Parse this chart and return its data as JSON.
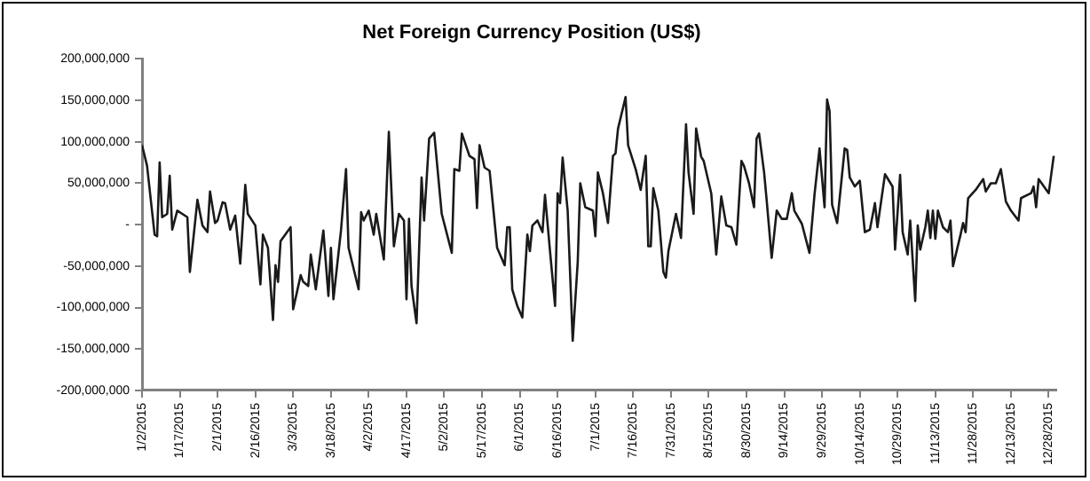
{
  "chart_data": {
    "type": "line",
    "title": "Net Foreign Currency Position (US$)",
    "x": [
      "2015-01-02",
      "2015-01-04",
      "2015-01-07",
      "2015-01-08",
      "2015-01-09",
      "2015-01-10",
      "2015-01-12",
      "2015-01-13",
      "2015-01-14",
      "2015-01-16",
      "2015-01-18",
      "2015-01-20",
      "2015-01-21",
      "2015-01-24",
      "2015-01-26",
      "2015-01-28",
      "2015-01-29",
      "2015-01-31",
      "2015-02-01",
      "2015-02-03",
      "2015-02-04",
      "2015-02-06",
      "2015-02-08",
      "2015-02-10",
      "2015-02-12",
      "2015-02-13",
      "2015-02-16",
      "2015-02-18",
      "2015-02-19",
      "2015-02-21",
      "2015-02-23",
      "2015-02-24",
      "2015-02-25",
      "2015-02-26",
      "2015-03-02",
      "2015-03-03",
      "2015-03-06",
      "2015-03-07",
      "2015-03-09",
      "2015-03-10",
      "2015-03-12",
      "2015-03-15",
      "2015-03-17",
      "2015-03-18",
      "2015-03-19",
      "2015-03-22",
      "2015-03-24",
      "2015-03-25",
      "2015-03-29",
      "2015-03-30",
      "2015-03-31",
      "2015-04-02",
      "2015-04-04",
      "2015-04-05",
      "2015-04-08",
      "2015-04-10",
      "2015-04-12",
      "2015-04-14",
      "2015-04-16",
      "2015-04-17",
      "2015-04-18",
      "2015-04-19",
      "2015-04-21",
      "2015-04-23",
      "2015-04-24",
      "2015-04-26",
      "2015-04-28",
      "2015-05-01",
      "2015-05-05",
      "2015-05-06",
      "2015-05-08",
      "2015-05-09",
      "2015-05-12",
      "2015-05-14",
      "2015-05-15",
      "2015-05-16",
      "2015-05-18",
      "2015-05-20",
      "2015-05-23",
      "2015-05-26",
      "2015-05-27",
      "2015-05-28",
      "2015-05-29",
      "2015-05-31",
      "2015-06-02",
      "2015-06-04",
      "2015-06-05",
      "2015-06-06",
      "2015-06-08",
      "2015-06-10",
      "2015-06-11",
      "2015-06-13",
      "2015-06-15",
      "2015-06-16",
      "2015-06-17",
      "2015-06-18",
      "2015-06-20",
      "2015-06-22",
      "2015-06-24",
      "2015-06-25",
      "2015-06-27",
      "2015-06-30",
      "2015-07-01",
      "2015-07-02",
      "2015-07-04",
      "2015-07-06",
      "2015-07-08",
      "2015-07-09",
      "2015-07-10",
      "2015-07-13",
      "2015-07-14",
      "2015-07-17",
      "2015-07-19",
      "2015-07-21",
      "2015-07-22",
      "2015-07-23",
      "2015-07-24",
      "2015-07-26",
      "2015-07-28",
      "2015-07-29",
      "2015-07-30",
      "2015-08-02",
      "2015-08-04",
      "2015-08-06",
      "2015-08-07",
      "2015-08-09",
      "2015-08-10",
      "2015-08-12",
      "2015-08-13",
      "2015-08-16",
      "2015-08-18",
      "2015-08-20",
      "2015-08-22",
      "2015-08-24",
      "2015-08-26",
      "2015-08-28",
      "2015-08-29",
      "2015-08-31",
      "2015-09-02",
      "2015-09-03",
      "2015-09-04",
      "2015-09-06",
      "2015-09-07",
      "2015-09-09",
      "2015-09-11",
      "2015-09-13",
      "2015-09-15",
      "2015-09-17",
      "2015-09-18",
      "2015-09-21",
      "2015-09-24",
      "2015-09-26",
      "2015-09-28",
      "2015-09-30",
      "2015-10-01",
      "2015-10-02",
      "2015-10-03",
      "2015-10-05",
      "2015-10-08",
      "2015-10-09",
      "2015-10-10",
      "2015-10-12",
      "2015-10-14",
      "2015-10-16",
      "2015-10-18",
      "2015-10-20",
      "2015-10-21",
      "2015-10-24",
      "2015-10-27",
      "2015-10-28",
      "2015-10-30",
      "2015-10-31",
      "2015-11-02",
      "2015-11-03",
      "2015-11-05",
      "2015-11-06",
      "2015-11-07",
      "2015-11-09",
      "2015-11-10",
      "2015-11-11",
      "2015-11-12",
      "2015-11-13",
      "2015-11-14",
      "2015-11-16",
      "2015-11-18",
      "2015-11-19",
      "2015-11-20",
      "2015-11-23",
      "2015-11-24",
      "2015-11-25",
      "2015-11-26",
      "2015-11-29",
      "2015-12-02",
      "2015-12-03",
      "2015-12-05",
      "2015-12-07",
      "2015-12-09",
      "2015-12-11",
      "2015-12-13",
      "2015-12-16",
      "2015-12-17",
      "2015-12-21",
      "2015-12-22",
      "2015-12-23",
      "2015-12-24",
      "2015-12-28",
      "2015-12-30"
    ],
    "series": [
      {
        "color": "#1a1a1a",
        "values": [
          96000000,
          71000000,
          -12000000,
          -14000000,
          75000000,
          9000000,
          13000000,
          59000000,
          -6000000,
          17000000,
          13000000,
          9000000,
          -57000000,
          30000000,
          -1000000,
          -9000000,
          40000000,
          2000000,
          5000000,
          27000000,
          26000000,
          -6000000,
          11000000,
          -47000000,
          48000000,
          13000000,
          -1000000,
          -72000000,
          -12000000,
          -28000000,
          -115000000,
          -49000000,
          -69000000,
          -20000000,
          -3000000,
          -102000000,
          -61000000,
          -69000000,
          -74000000,
          -36000000,
          -78000000,
          -7000000,
          -86000000,
          -28000000,
          -90000000,
          -7000000,
          67000000,
          -28000000,
          -78000000,
          15000000,
          5000000,
          17000000,
          -12000000,
          13000000,
          -42000000,
          112000000,
          -26000000,
          13000000,
          5000000,
          -90000000,
          7000000,
          -74000000,
          -119000000,
          57000000,
          5000000,
          104000000,
          111000000,
          13000000,
          -34000000,
          67000000,
          65000000,
          110000000,
          83000000,
          79000000,
          20000000,
          96000000,
          69000000,
          65000000,
          -28000000,
          -49000000,
          -3000000,
          -3000000,
          -78000000,
          -98000000,
          -112000000,
          -12000000,
          -32000000,
          -1000000,
          5000000,
          -9000000,
          36000000,
          -32000000,
          -98000000,
          38000000,
          26000000,
          81000000,
          17000000,
          -140000000,
          -45000000,
          50000000,
          21000000,
          17000000,
          -14000000,
          63000000,
          38000000,
          2000000,
          83000000,
          86000000,
          116000000,
          154000000,
          96000000,
          67000000,
          42000000,
          83000000,
          -26000000,
          -26000000,
          44000000,
          17000000,
          -57000000,
          -64000000,
          -32000000,
          13000000,
          -16000000,
          121000000,
          63000000,
          13000000,
          116000000,
          82000000,
          77000000,
          38000000,
          -36000000,
          34000000,
          -1000000,
          -3000000,
          -24000000,
          77000000,
          71000000,
          50000000,
          21000000,
          104000000,
          110000000,
          63000000,
          30000000,
          -40000000,
          17000000,
          7000000,
          7000000,
          38000000,
          17000000,
          1000000,
          -34000000,
          36000000,
          92000000,
          21000000,
          151000000,
          137000000,
          24000000,
          2000000,
          92000000,
          90000000,
          57000000,
          46000000,
          53000000,
          -9000000,
          -6000000,
          26000000,
          -3000000,
          61000000,
          46000000,
          -30000000,
          60000000,
          -9000000,
          -36000000,
          5000000,
          -92000000,
          -1000000,
          -30000000,
          -3000000,
          17000000,
          -16000000,
          17000000,
          -17000000,
          17000000,
          -3000000,
          -9000000,
          5000000,
          -50000000,
          -12000000,
          2000000,
          -9000000,
          32000000,
          42000000,
          55000000,
          40000000,
          50000000,
          50000000,
          67000000,
          28000000,
          17000000,
          5000000,
          32000000,
          38000000,
          46000000,
          21000000,
          55000000,
          38000000,
          83000000
        ]
      }
    ],
    "xlim": [
      "2015-01-02",
      "2015-12-31"
    ],
    "xticks": [
      {
        "value": "2015-01-02",
        "label": "1/2/2015"
      },
      {
        "value": "2015-01-17",
        "label": "1/17/2015"
      },
      {
        "value": "2015-02-01",
        "label": "2/1/2015"
      },
      {
        "value": "2015-02-16",
        "label": "2/16/2015"
      },
      {
        "value": "2015-03-03",
        "label": "3/3/2015"
      },
      {
        "value": "2015-03-18",
        "label": "3/18/2015"
      },
      {
        "value": "2015-04-02",
        "label": "4/2/2015"
      },
      {
        "value": "2015-04-17",
        "label": "4/17/2015"
      },
      {
        "value": "2015-05-02",
        "label": "5/2/2015"
      },
      {
        "value": "2015-05-17",
        "label": "5/17/2015"
      },
      {
        "value": "2015-06-01",
        "label": "6/1/2015"
      },
      {
        "value": "2015-06-16",
        "label": "6/16/2015"
      },
      {
        "value": "2015-07-01",
        "label": "7/1/2015"
      },
      {
        "value": "2015-07-16",
        "label": "7/16/2015"
      },
      {
        "value": "2015-07-31",
        "label": "7/31/2015"
      },
      {
        "value": "2015-08-15",
        "label": "8/15/2015"
      },
      {
        "value": "2015-08-30",
        "label": "8/30/2015"
      },
      {
        "value": "2015-09-14",
        "label": "9/14/2015"
      },
      {
        "value": "2015-09-29",
        "label": "9/29/2015"
      },
      {
        "value": "2015-10-14",
        "label": "10/14/2015"
      },
      {
        "value": "2015-10-29",
        "label": "10/29/2015"
      },
      {
        "value": "2015-11-13",
        "label": "11/13/2015"
      },
      {
        "value": "2015-11-28",
        "label": "11/28/2015"
      },
      {
        "value": "2015-12-13",
        "label": "12/13/2015"
      },
      {
        "value": "2015-12-28",
        "label": "12/28/2015"
      }
    ],
    "ylim": [
      -200000000,
      200000000
    ],
    "yticks": [
      {
        "value": -200000000,
        "label": "-200,000,000"
      },
      {
        "value": -150000000,
        "label": "-150,000,000"
      },
      {
        "value": -100000000,
        "label": "-100,000,000"
      },
      {
        "value": -50000000,
        "label": "-50,000,000"
      },
      {
        "value": 0,
        "label": "-"
      },
      {
        "value": 50000000,
        "label": "50,000,000"
      },
      {
        "value": 100000000,
        "label": "100,000,000"
      },
      {
        "value": 150000000,
        "label": "150,000,000"
      },
      {
        "value": 200000000,
        "label": "200,000,000"
      }
    ],
    "marker": "none",
    "line_style": "solid"
  }
}
